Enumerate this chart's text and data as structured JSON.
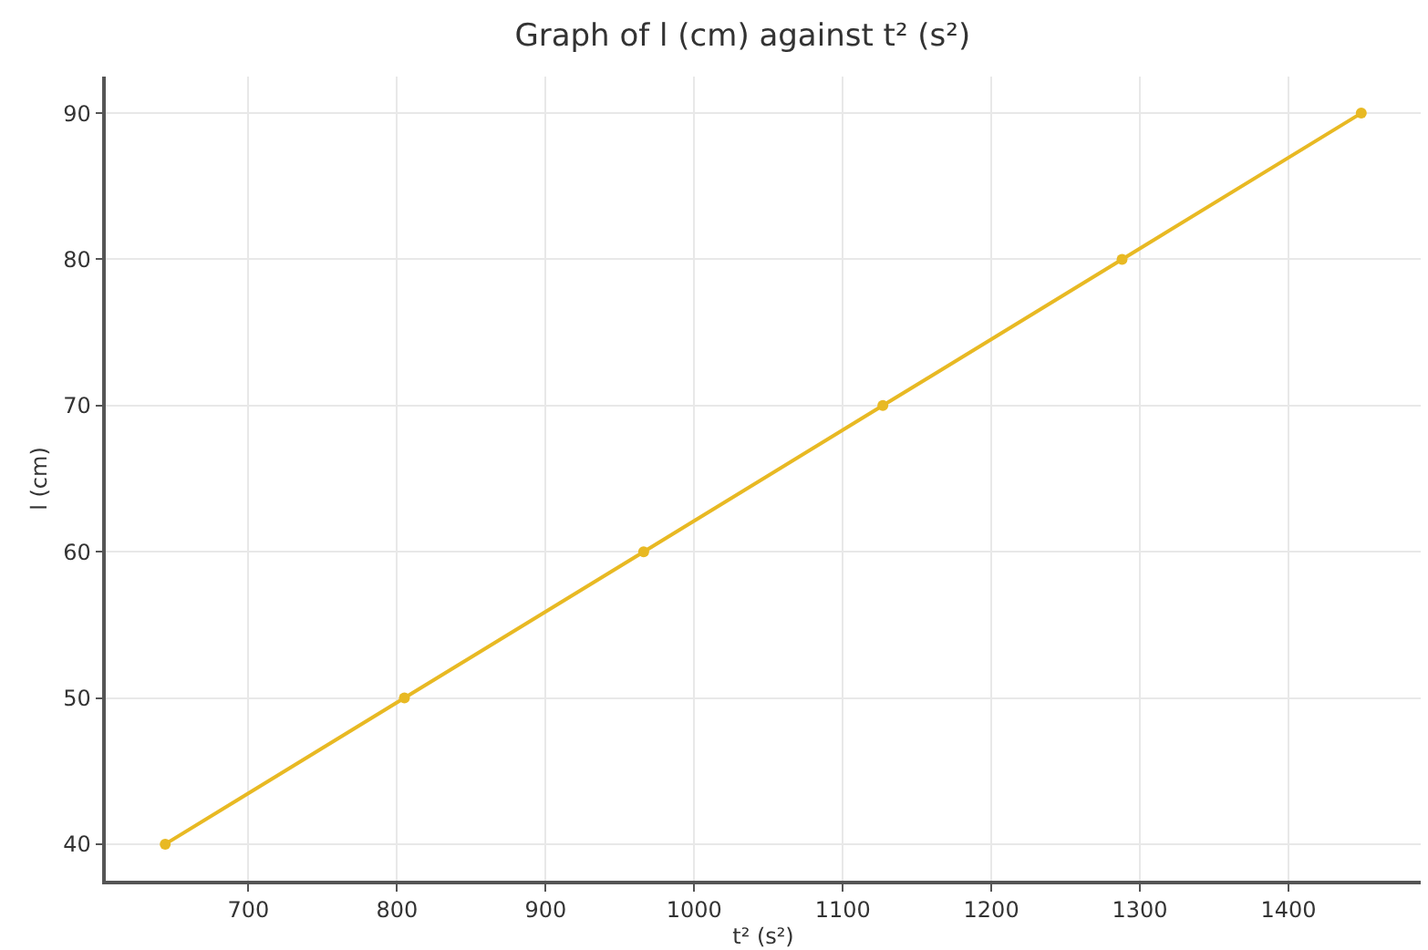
{
  "chart_data": {
    "type": "line",
    "title": "Graph of l (cm) against t² (s²)",
    "xlabel": "t² (s²)",
    "ylabel": "l (cm)",
    "x": [
      644,
      805,
      966,
      1127,
      1288,
      1449
    ],
    "series": [
      {
        "color": "#e8b923",
        "values": [
          40,
          50,
          60,
          70,
          80,
          90
        ]
      }
    ],
    "xlim": [
      604,
      1489
    ],
    "xticks": [
      700,
      800,
      900,
      1000,
      1100,
      1200,
      1300,
      1400
    ],
    "ylim": [
      37.5,
      92.5
    ],
    "yticks": [
      40,
      50,
      60,
      70,
      80,
      90
    ],
    "grid": true,
    "marker": "circle",
    "line_style": "solid"
  }
}
